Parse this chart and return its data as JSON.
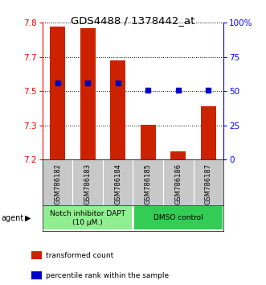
{
  "title": "GDS4488 / 1378442_at",
  "samples": [
    "GSM786182",
    "GSM786183",
    "GSM786184",
    "GSM786185",
    "GSM786186",
    "GSM786187"
  ],
  "red_values": [
    7.785,
    7.775,
    7.635,
    7.352,
    7.235,
    7.435
  ],
  "blue_percentiles": [
    56,
    56,
    56,
    51,
    51,
    51
  ],
  "ylim": [
    7.2,
    7.8
  ],
  "yticks": [
    7.2,
    7.35,
    7.5,
    7.65,
    7.8
  ],
  "right_yticks": [
    0,
    25,
    50,
    75,
    100
  ],
  "right_ytick_labels": [
    "0",
    "25",
    "50",
    "75",
    "100%"
  ],
  "groups": [
    {
      "label": "Notch inhibitor DAPT\n(10 μM.)",
      "color": "#90EE90",
      "start": 0,
      "end": 3
    },
    {
      "label": "DMSO control",
      "color": "#33CC55",
      "start": 3,
      "end": 6
    }
  ],
  "agent_label": "agent",
  "bar_color": "#CC2200",
  "marker_color": "#0000CC",
  "bar_width": 0.5,
  "baseline": 7.2,
  "legend_items": [
    {
      "color": "#CC2200",
      "label": "transformed count"
    },
    {
      "color": "#0000CC",
      "label": "percentile rank within the sample"
    }
  ]
}
